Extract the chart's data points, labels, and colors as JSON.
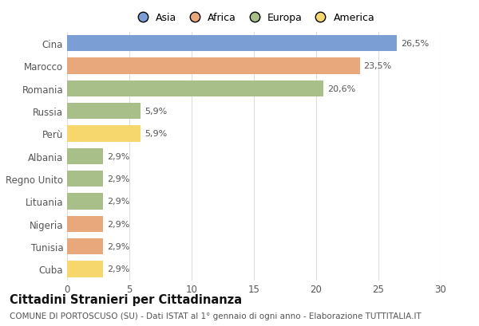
{
  "categories": [
    "Cina",
    "Marocco",
    "Romania",
    "Russia",
    "Perù",
    "Albania",
    "Regno Unito",
    "Lituania",
    "Nigeria",
    "Tunisia",
    "Cuba"
  ],
  "values": [
    26.5,
    23.5,
    20.6,
    5.9,
    5.9,
    2.9,
    2.9,
    2.9,
    2.9,
    2.9,
    2.9
  ],
  "labels": [
    "26,5%",
    "23,5%",
    "20,6%",
    "5,9%",
    "5,9%",
    "2,9%",
    "2,9%",
    "2,9%",
    "2,9%",
    "2,9%",
    "2,9%"
  ],
  "colors": [
    "#7b9fd4",
    "#e8a87c",
    "#a8bf8a",
    "#a8bf8a",
    "#f5d76e",
    "#a8bf8a",
    "#a8bf8a",
    "#a8bf8a",
    "#e8a87c",
    "#e8a87c",
    "#f5d76e"
  ],
  "legend_labels": [
    "Asia",
    "Africa",
    "Europa",
    "America"
  ],
  "legend_colors": [
    "#7b9fd4",
    "#e8a87c",
    "#a8bf8a",
    "#f5d76e"
  ],
  "title": "Cittadini Stranieri per Cittadinanza",
  "subtitle": "COMUNE DI PORTOSCUSO (SU) - Dati ISTAT al 1° gennaio di ogni anno - Elaborazione TUTTITALIA.IT",
  "xlim": [
    0,
    30
  ],
  "xticks": [
    0,
    5,
    10,
    15,
    20,
    25,
    30
  ],
  "background_color": "#ffffff",
  "grid_color": "#dddddd",
  "bar_height": 0.72,
  "title_fontsize": 10.5,
  "subtitle_fontsize": 7.5,
  "label_fontsize": 8,
  "tick_fontsize": 8.5,
  "legend_fontsize": 9
}
